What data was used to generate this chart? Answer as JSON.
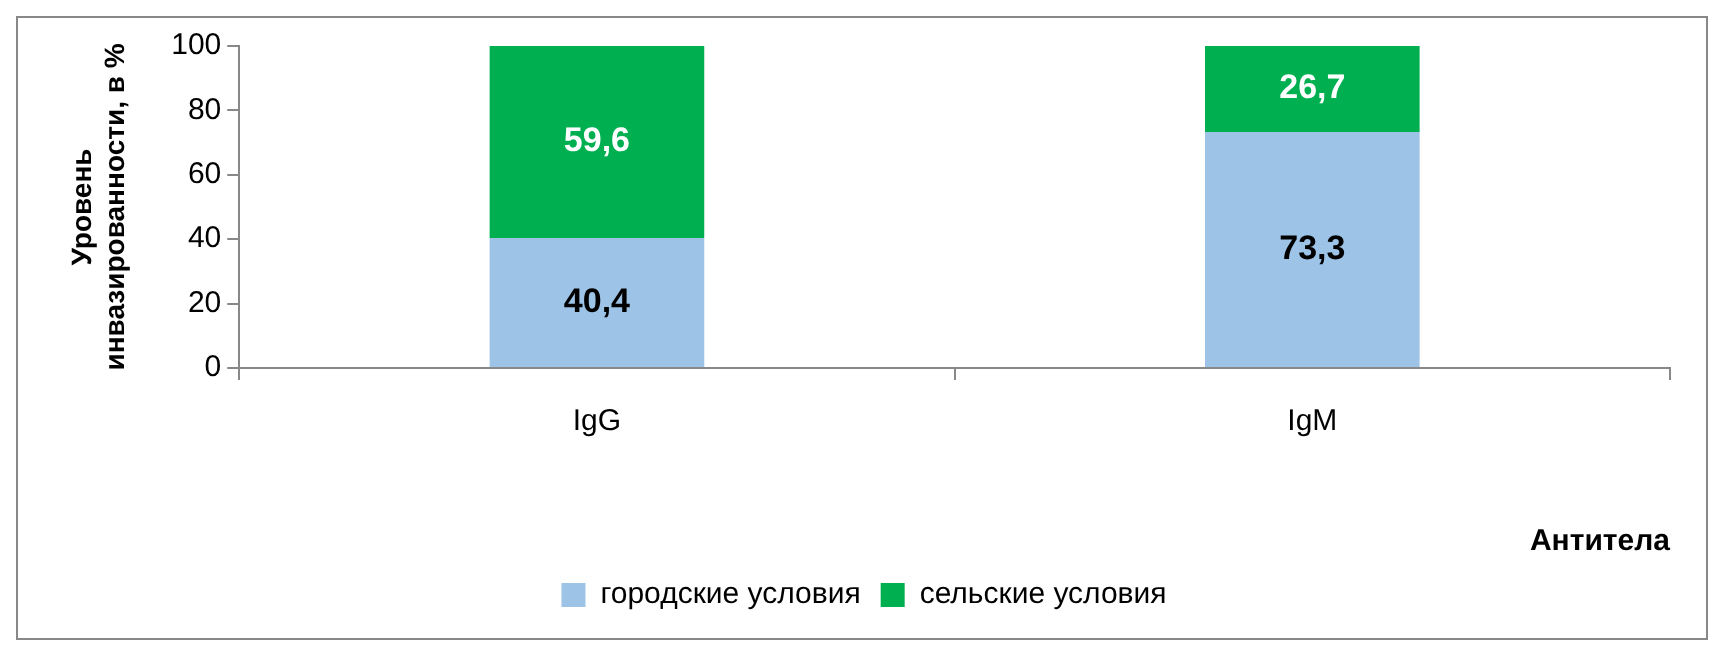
{
  "chart_data": {
    "type": "bar",
    "stacked": true,
    "categories": [
      "IgG",
      "IgM"
    ],
    "xlabel": "Антитела",
    "ylabel": "Уровень инвазированности, в %",
    "ylim": [
      0,
      100
    ],
    "yticks": [
      0,
      20,
      40,
      60,
      80,
      100
    ],
    "legend": "bottom",
    "series": [
      {
        "name": "городские условия",
        "color": "#9dc3e6",
        "values": [
          40.4,
          73.3
        ],
        "value_labels": [
          "40,4",
          "73,3"
        ]
      },
      {
        "name": "сельские условия",
        "color": "#00b050",
        "values": [
          59.6,
          26.7
        ],
        "value_labels": [
          "59,6",
          "26,7"
        ]
      }
    ]
  }
}
